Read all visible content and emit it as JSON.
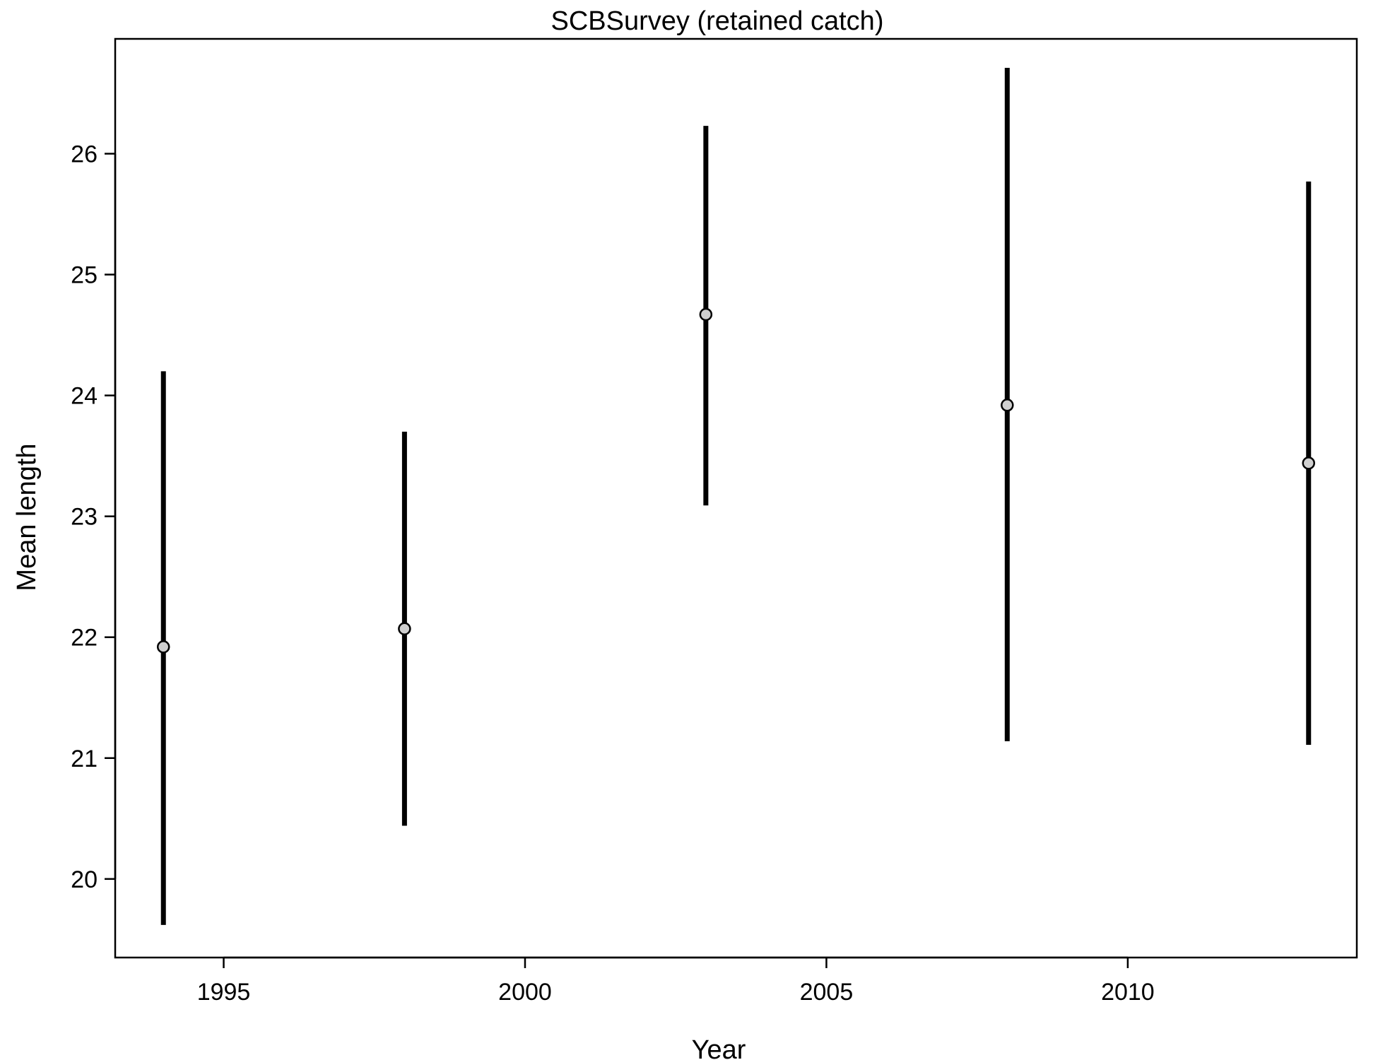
{
  "chart_data": {
    "type": "scatter",
    "title": "SCBSurvey (retained catch)",
    "xlabel": "Year",
    "ylabel": "Mean length",
    "xlim": [
      1993.2,
      2013.8
    ],
    "ylim": [
      19.35,
      26.95
    ],
    "xticks": [
      1995,
      2000,
      2005,
      2010
    ],
    "yticks": [
      20,
      21,
      22,
      23,
      24,
      25,
      26
    ],
    "grid": false,
    "legend": "none",
    "series": [
      {
        "points": [
          {
            "x": 1994,
            "y": 21.92,
            "lower": 19.62,
            "upper": 24.2
          },
          {
            "x": 1998,
            "y": 22.07,
            "lower": 20.44,
            "upper": 23.7
          },
          {
            "x": 2003,
            "y": 24.67,
            "lower": 23.09,
            "upper": 26.23
          },
          {
            "x": 2008,
            "y": 23.92,
            "lower": 21.14,
            "upper": 26.71
          },
          {
            "x": 2013,
            "y": 23.44,
            "lower": 21.11,
            "upper": 25.77
          }
        ]
      }
    ],
    "colors": {
      "point_fill": "#cfcfcf",
      "point_stroke": "#000000",
      "bar": "#000000"
    }
  }
}
